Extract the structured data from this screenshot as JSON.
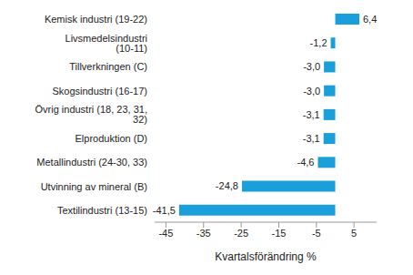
{
  "chart_data": {
    "type": "bar",
    "orientation": "horizontal",
    "categories": [
      "Kemisk industri (19-22)",
      "Livsmedelsindustri (10-11)",
      "Tillverkningen (C)",
      "Skogsindustri (16-17)",
      "Övrig industri (18, 23, 31, 32)",
      "Elproduktion (D)",
      "Metallindustri (24-30, 33)",
      "Utvinning av mineral (B)",
      "Textilindustri (13-15)"
    ],
    "values": [
      6.4,
      -1.2,
      -3.0,
      -3.0,
      -3.1,
      -3.1,
      -4.6,
      -24.8,
      -41.5
    ],
    "value_labels": [
      "6,4",
      "-1,2",
      "-3,0",
      "-3,0",
      "-3,1",
      "-3,1",
      "-4,6",
      "-24,8",
      "-41,5"
    ],
    "data_labels": true,
    "color": "#1a9fdb",
    "xlabel": "Kvartalsförändring %",
    "xlim": [
      -48,
      11
    ],
    "xticks": [
      -45,
      -35,
      -25,
      -15,
      -5,
      5
    ],
    "grid": false
  }
}
